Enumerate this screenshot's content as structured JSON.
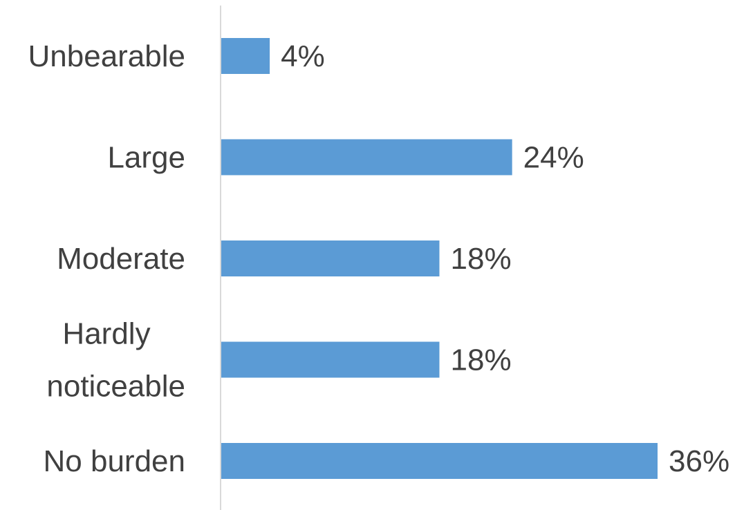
{
  "chart_data": {
    "type": "bar",
    "orientation": "horizontal",
    "categories": [
      "Unbearable",
      "Large",
      "Moderate",
      "Hardly noticeable",
      "No burden"
    ],
    "values": [
      4,
      24,
      18,
      18,
      36
    ],
    "data_labels": [
      "4%",
      "24%",
      "18%",
      "18%",
      "36%"
    ],
    "unit": "%",
    "xlim": [
      0,
      36
    ],
    "grid": false,
    "legend": "none",
    "bar_color": "#5B9BD5",
    "axis_color": "#D9D9D9",
    "text_color": "#404040"
  }
}
